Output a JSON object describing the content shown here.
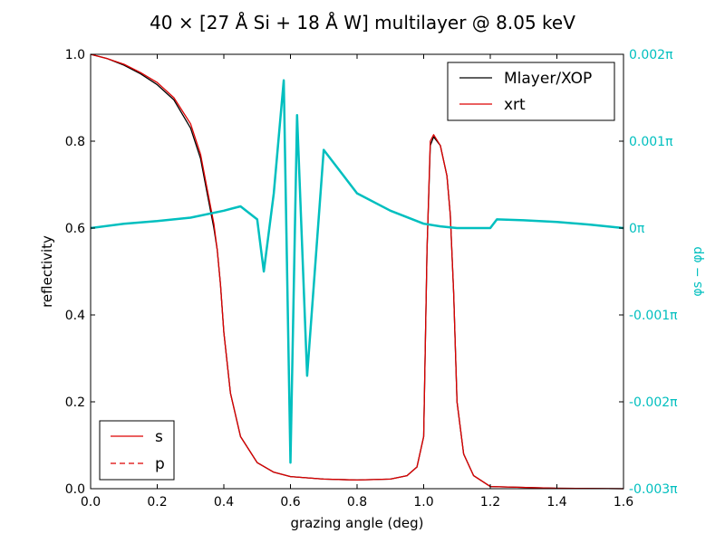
{
  "chart_data": {
    "type": "line",
    "title": "40 × [27 Å Si + 18 Å W] multilayer @ 8.05 keV",
    "xlabel": "grazing angle (deg)",
    "ylabel": "reflectivity",
    "ylabel_right": "φs − φp",
    "xlim": [
      0.0,
      1.6
    ],
    "ylim": [
      0.0,
      1.0
    ],
    "ylim_right": [
      -0.003,
      0.002
    ],
    "right_axis_unit": "π",
    "grid": false,
    "x_ticks": [
      "0.0",
      "0.2",
      "0.4",
      "0.6",
      "0.8",
      "1.0",
      "1.2",
      "1.4",
      "1.6"
    ],
    "y_ticks": [
      "0.0",
      "0.2",
      "0.4",
      "0.6",
      "0.8",
      "1.0"
    ],
    "y_ticks_right": [
      "-0.003π",
      "-0.002π",
      "-0.001π",
      "0π",
      "0.001π",
      "0.002π"
    ],
    "colors": {
      "mlayer": "#000000",
      "xrt": "#dd0000",
      "phase": "#00bfbf"
    },
    "legend_top": {
      "placement": "top-right",
      "entries": [
        {
          "label": "Mlayer/XOP",
          "color": "#000000",
          "style": "solid"
        },
        {
          "label": "xrt",
          "color": "#dd0000",
          "style": "solid"
        }
      ]
    },
    "legend_bottom": {
      "placement": "bottom-left",
      "entries": [
        {
          "label": "s",
          "color": "#dd0000",
          "style": "solid"
        },
        {
          "label": "p",
          "color": "#dd0000",
          "style": "dashed"
        }
      ]
    },
    "series": [
      {
        "name": "Mlayer/XOP",
        "axis": "left",
        "x": [
          0.0,
          0.05,
          0.1,
          0.15,
          0.2,
          0.25,
          0.3,
          0.33,
          0.35,
          0.37,
          0.38,
          0.39,
          0.4,
          0.42,
          0.45,
          0.5,
          0.55,
          0.6,
          0.7,
          0.8,
          0.9,
          0.95,
          0.98,
          1.0,
          1.01,
          1.02,
          1.03,
          1.05,
          1.07,
          1.08,
          1.09,
          1.1,
          1.12,
          1.15,
          1.2,
          1.4,
          1.6
        ],
        "y": [
          1.0,
          0.99,
          0.975,
          0.955,
          0.93,
          0.895,
          0.83,
          0.76,
          0.68,
          0.6,
          0.55,
          0.47,
          0.36,
          0.22,
          0.12,
          0.06,
          0.038,
          0.028,
          0.022,
          0.02,
          0.022,
          0.03,
          0.05,
          0.12,
          0.55,
          0.79,
          0.81,
          0.79,
          0.72,
          0.63,
          0.45,
          0.2,
          0.08,
          0.03,
          0.005,
          0.001,
          0.0
        ]
      },
      {
        "name": "xrt",
        "axis": "left",
        "x": [
          0.0,
          0.05,
          0.1,
          0.15,
          0.2,
          0.25,
          0.3,
          0.33,
          0.35,
          0.37,
          0.38,
          0.39,
          0.4,
          0.42,
          0.45,
          0.5,
          0.55,
          0.6,
          0.7,
          0.8,
          0.9,
          0.95,
          0.98,
          1.0,
          1.01,
          1.02,
          1.03,
          1.05,
          1.07,
          1.08,
          1.09,
          1.1,
          1.12,
          1.15,
          1.2,
          1.4,
          1.6
        ],
        "y": [
          1.0,
          0.99,
          0.977,
          0.958,
          0.935,
          0.9,
          0.84,
          0.77,
          0.69,
          0.61,
          0.55,
          0.47,
          0.36,
          0.22,
          0.12,
          0.06,
          0.038,
          0.028,
          0.022,
          0.02,
          0.022,
          0.03,
          0.05,
          0.12,
          0.55,
          0.8,
          0.815,
          0.79,
          0.72,
          0.63,
          0.45,
          0.2,
          0.08,
          0.03,
          0.005,
          0.001,
          0.0
        ]
      },
      {
        "name": "φs − φp",
        "axis": "right",
        "x": [
          0.0,
          0.1,
          0.2,
          0.3,
          0.4,
          0.45,
          0.5,
          0.52,
          0.55,
          0.58,
          0.6,
          0.62,
          0.65,
          0.7,
          0.8,
          0.9,
          1.0,
          1.05,
          1.1,
          1.15,
          1.2,
          1.22,
          1.3,
          1.4,
          1.5,
          1.6
        ],
        "y": [
          0.0,
          5e-05,
          8e-05,
          0.00012,
          0.0002,
          0.00025,
          0.0001,
          -0.0005,
          0.0004,
          0.0017,
          -0.0027,
          0.0013,
          -0.0017,
          0.0009,
          0.0004,
          0.0002,
          5e-05,
          2e-05,
          0.0,
          0.0,
          0.0,
          0.0001,
          9e-05,
          7e-05,
          4e-05,
          0.0
        ]
      }
    ]
  }
}
